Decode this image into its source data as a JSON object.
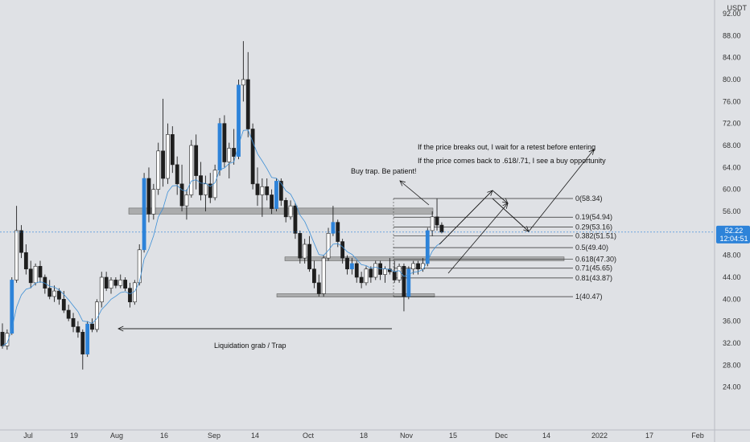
{
  "chart_data": {
    "type": "candlestick",
    "currency": "USDT",
    "ylim": [
      20.0,
      92.0
    ],
    "yticks": [
      "92.00",
      "88.00",
      "84.00",
      "80.00",
      "76.00",
      "72.00",
      "68.00",
      "64.00",
      "60.00",
      "56.00",
      "52.00",
      "48.00",
      "44.00",
      "40.00",
      "36.00",
      "32.00",
      "28.00",
      "24.00"
    ],
    "xticks": [
      "Jul",
      "19",
      "Aug",
      "16",
      "Sep",
      "14",
      "Oct",
      "18",
      "Nov",
      "15",
      "Dec",
      "14",
      "2022",
      "17",
      "Feb"
    ],
    "last_price": "52.22",
    "countdown": "12:04:51",
    "colors": {
      "up": "#ffffff",
      "down": "#1e1e1e",
      "wick": "#222222",
      "ma": "#3d8fd6",
      "accent": "#2d83d9",
      "zone": "#9a9a9a"
    },
    "ma_label": "",
    "fib_levels": [
      {
        "ratio": 0,
        "price": 58.34,
        "label": "0(58.34)"
      },
      {
        "ratio": 0.19,
        "price": 54.94,
        "label": "0.19(54.94)"
      },
      {
        "ratio": 0.29,
        "price": 53.16,
        "label": "0.29(53.16)"
      },
      {
        "ratio": 0.382,
        "price": 51.51,
        "label": "0.382(51.51)"
      },
      {
        "ratio": 0.5,
        "price": 49.4,
        "label": "0.5(49.40)"
      },
      {
        "ratio": 0.618,
        "price": 47.3,
        "label": "0.618(47.30)"
      },
      {
        "ratio": 0.71,
        "price": 45.65,
        "label": "0.71(45.65)"
      },
      {
        "ratio": 0.81,
        "price": 43.87,
        "label": "0.81(43.87)"
      },
      {
        "ratio": 1,
        "price": 40.47,
        "label": "1(40.47)"
      }
    ],
    "zones": [
      {
        "name": "resistance-zone",
        "price_top": 56.6,
        "price_bottom": 55.5
      },
      {
        "name": "mid-zone",
        "price_top": 47.7,
        "price_bottom": 47.0
      },
      {
        "name": "support-zone",
        "price_top": 41.0,
        "price_bottom": 40.4
      }
    ],
    "annotations": {
      "breakout_note": "If the price breaks out, I wait for a retest before entering",
      "buy_note": "If the price comes back to .618/.71, I see a buy opportunity",
      "trap_note": "Buy trap. Be patient!",
      "liquidation_note": "Liquidation grab / Trap"
    },
    "candles": [
      {
        "o": 34.0,
        "h": 35.6,
        "l": 31.0,
        "c": 31.5
      },
      {
        "o": 31.5,
        "h": 34.5,
        "l": 30.8,
        "c": 33.8
      },
      {
        "o": 33.8,
        "h": 44.0,
        "l": 33.5,
        "c": 43.5
      },
      {
        "o": 43.5,
        "h": 57.0,
        "l": 43.0,
        "c": 52.5
      },
      {
        "o": 52.5,
        "h": 53.5,
        "l": 47.5,
        "c": 48.5
      },
      {
        "o": 48.5,
        "h": 50.0,
        "l": 44.5,
        "c": 45.5
      },
      {
        "o": 45.5,
        "h": 47.0,
        "l": 42.0,
        "c": 43.0
      },
      {
        "o": 43.0,
        "h": 46.5,
        "l": 42.5,
        "c": 46.0
      },
      {
        "o": 46.0,
        "h": 47.0,
        "l": 43.0,
        "c": 44.0
      },
      {
        "o": 44.0,
        "h": 44.5,
        "l": 41.0,
        "c": 42.0
      },
      {
        "o": 42.0,
        "h": 43.5,
        "l": 40.0,
        "c": 40.5
      },
      {
        "o": 40.5,
        "h": 42.5,
        "l": 39.5,
        "c": 41.5
      },
      {
        "o": 41.5,
        "h": 42.0,
        "l": 39.0,
        "c": 40.0
      },
      {
        "o": 40.0,
        "h": 41.5,
        "l": 37.5,
        "c": 38.0
      },
      {
        "o": 38.0,
        "h": 39.0,
        "l": 36.0,
        "c": 36.5
      },
      {
        "o": 36.5,
        "h": 37.5,
        "l": 34.0,
        "c": 35.0
      },
      {
        "o": 35.0,
        "h": 36.0,
        "l": 33.0,
        "c": 34.0
      },
      {
        "o": 34.0,
        "h": 34.5,
        "l": 27.2,
        "c": 30.0
      },
      {
        "o": 30.0,
        "h": 36.0,
        "l": 29.5,
        "c": 35.5
      },
      {
        "o": 35.5,
        "h": 36.5,
        "l": 34.0,
        "c": 34.5
      },
      {
        "o": 34.5,
        "h": 40.0,
        "l": 34.0,
        "c": 39.5
      },
      {
        "o": 39.5,
        "h": 45.0,
        "l": 38.5,
        "c": 44.0
      },
      {
        "o": 44.0,
        "h": 45.0,
        "l": 41.5,
        "c": 42.0
      },
      {
        "o": 42.0,
        "h": 44.0,
        "l": 41.0,
        "c": 43.5
      },
      {
        "o": 43.5,
        "h": 44.0,
        "l": 42.0,
        "c": 42.5
      },
      {
        "o": 42.5,
        "h": 44.5,
        "l": 42.0,
        "c": 43.5
      },
      {
        "o": 43.5,
        "h": 44.0,
        "l": 41.5,
        "c": 42.0
      },
      {
        "o": 42.0,
        "h": 43.0,
        "l": 38.5,
        "c": 39.5
      },
      {
        "o": 39.5,
        "h": 43.5,
        "l": 39.0,
        "c": 43.0
      },
      {
        "o": 43.0,
        "h": 50.0,
        "l": 42.5,
        "c": 49.0
      },
      {
        "o": 49.0,
        "h": 63.0,
        "l": 48.5,
        "c": 62.0
      },
      {
        "o": 62.0,
        "h": 64.0,
        "l": 54.0,
        "c": 55.5
      },
      {
        "o": 55.5,
        "h": 61.0,
        "l": 54.5,
        "c": 60.0
      },
      {
        "o": 60.0,
        "h": 68.5,
        "l": 59.0,
        "c": 67.0
      },
      {
        "o": 67.0,
        "h": 76.5,
        "l": 60.5,
        "c": 62.0
      },
      {
        "o": 62.0,
        "h": 72.0,
        "l": 61.0,
        "c": 70.0
      },
      {
        "o": 70.0,
        "h": 71.5,
        "l": 63.0,
        "c": 64.5
      },
      {
        "o": 64.5,
        "h": 66.0,
        "l": 59.0,
        "c": 61.0
      },
      {
        "o": 61.0,
        "h": 64.5,
        "l": 56.0,
        "c": 57.0
      },
      {
        "o": 57.0,
        "h": 60.0,
        "l": 54.5,
        "c": 59.0
      },
      {
        "o": 59.0,
        "h": 69.0,
        "l": 58.5,
        "c": 68.0
      },
      {
        "o": 68.0,
        "h": 70.0,
        "l": 60.0,
        "c": 62.5
      },
      {
        "o": 62.5,
        "h": 65.0,
        "l": 58.0,
        "c": 59.0
      },
      {
        "o": 59.0,
        "h": 62.5,
        "l": 56.0,
        "c": 61.0
      },
      {
        "o": 61.0,
        "h": 63.0,
        "l": 57.5,
        "c": 58.5
      },
      {
        "o": 58.5,
        "h": 64.5,
        "l": 58.0,
        "c": 63.5
      },
      {
        "o": 63.5,
        "h": 73.0,
        "l": 62.5,
        "c": 72.0
      },
      {
        "o": 72.0,
        "h": 73.5,
        "l": 64.0,
        "c": 65.0
      },
      {
        "o": 65.0,
        "h": 68.5,
        "l": 62.0,
        "c": 67.5
      },
      {
        "o": 67.5,
        "h": 71.0,
        "l": 64.5,
        "c": 66.0
      },
      {
        "o": 66.0,
        "h": 80.0,
        "l": 65.5,
        "c": 79.0
      },
      {
        "o": 79.0,
        "h": 87.0,
        "l": 76.0,
        "c": 80.0
      },
      {
        "o": 80.0,
        "h": 85.0,
        "l": 69.5,
        "c": 71.0
      },
      {
        "o": 71.0,
        "h": 72.0,
        "l": 60.0,
        "c": 61.0
      },
      {
        "o": 61.0,
        "h": 64.0,
        "l": 57.0,
        "c": 59.0
      },
      {
        "o": 59.0,
        "h": 62.0,
        "l": 55.0,
        "c": 60.5
      },
      {
        "o": 60.5,
        "h": 62.0,
        "l": 58.0,
        "c": 59.0
      },
      {
        "o": 59.0,
        "h": 60.0,
        "l": 55.5,
        "c": 56.5
      },
      {
        "o": 56.5,
        "h": 62.0,
        "l": 56.0,
        "c": 61.5
      },
      {
        "o": 61.5,
        "h": 62.0,
        "l": 57.0,
        "c": 58.0
      },
      {
        "o": 58.0,
        "h": 58.5,
        "l": 54.0,
        "c": 55.0
      },
      {
        "o": 55.0,
        "h": 58.0,
        "l": 54.5,
        "c": 57.0
      },
      {
        "o": 57.0,
        "h": 57.5,
        "l": 51.0,
        "c": 52.0
      },
      {
        "o": 52.0,
        "h": 52.5,
        "l": 46.5,
        "c": 47.5
      },
      {
        "o": 47.5,
        "h": 51.0,
        "l": 46.5,
        "c": 50.0
      },
      {
        "o": 50.0,
        "h": 51.5,
        "l": 45.0,
        "c": 45.5
      },
      {
        "o": 45.5,
        "h": 47.0,
        "l": 42.0,
        "c": 43.0
      },
      {
        "o": 43.0,
        "h": 44.5,
        "l": 40.5,
        "c": 41.0
      },
      {
        "o": 41.0,
        "h": 48.0,
        "l": 40.5,
        "c": 47.5
      },
      {
        "o": 47.5,
        "h": 53.0,
        "l": 47.0,
        "c": 52.0
      },
      {
        "o": 52.0,
        "h": 57.0,
        "l": 51.5,
        "c": 54.0
      },
      {
        "o": 54.0,
        "h": 54.5,
        "l": 49.5,
        "c": 50.5
      },
      {
        "o": 50.5,
        "h": 51.0,
        "l": 46.5,
        "c": 47.5
      },
      {
        "o": 47.5,
        "h": 48.0,
        "l": 44.5,
        "c": 45.5
      },
      {
        "o": 45.5,
        "h": 47.5,
        "l": 44.5,
        "c": 46.5
      },
      {
        "o": 46.5,
        "h": 47.0,
        "l": 43.0,
        "c": 44.0
      },
      {
        "o": 44.0,
        "h": 45.0,
        "l": 42.0,
        "c": 43.0
      },
      {
        "o": 43.0,
        "h": 46.0,
        "l": 42.5,
        "c": 45.5
      },
      {
        "o": 45.5,
        "h": 46.0,
        "l": 43.0,
        "c": 44.0
      },
      {
        "o": 44.0,
        "h": 47.0,
        "l": 43.5,
        "c": 46.5
      },
      {
        "o": 46.5,
        "h": 47.0,
        "l": 43.5,
        "c": 44.5
      },
      {
        "o": 44.5,
        "h": 46.0,
        "l": 43.0,
        "c": 45.5
      },
      {
        "o": 45.5,
        "h": 47.5,
        "l": 44.5,
        "c": 45.0
      },
      {
        "o": 45.0,
        "h": 47.0,
        "l": 43.0,
        "c": 43.5
      },
      {
        "o": 43.5,
        "h": 46.5,
        "l": 43.0,
        "c": 46.0
      },
      {
        "o": 46.0,
        "h": 46.5,
        "l": 37.8,
        "c": 40.5
      },
      {
        "o": 40.5,
        "h": 46.0,
        "l": 40.0,
        "c": 45.5
      },
      {
        "o": 45.5,
        "h": 47.0,
        "l": 44.5,
        "c": 46.5
      },
      {
        "o": 46.5,
        "h": 47.0,
        "l": 44.5,
        "c": 45.5
      },
      {
        "o": 45.5,
        "h": 47.5,
        "l": 45.0,
        "c": 46.5
      },
      {
        "o": 46.5,
        "h": 53.0,
        "l": 46.0,
        "c": 52.5
      },
      {
        "o": 52.5,
        "h": 56.0,
        "l": 51.5,
        "c": 55.0
      },
      {
        "o": 55.0,
        "h": 58.3,
        "l": 52.5,
        "c": 53.5
      },
      {
        "o": 53.5,
        "h": 54.0,
        "l": 52.0,
        "c": 52.22
      }
    ]
  }
}
